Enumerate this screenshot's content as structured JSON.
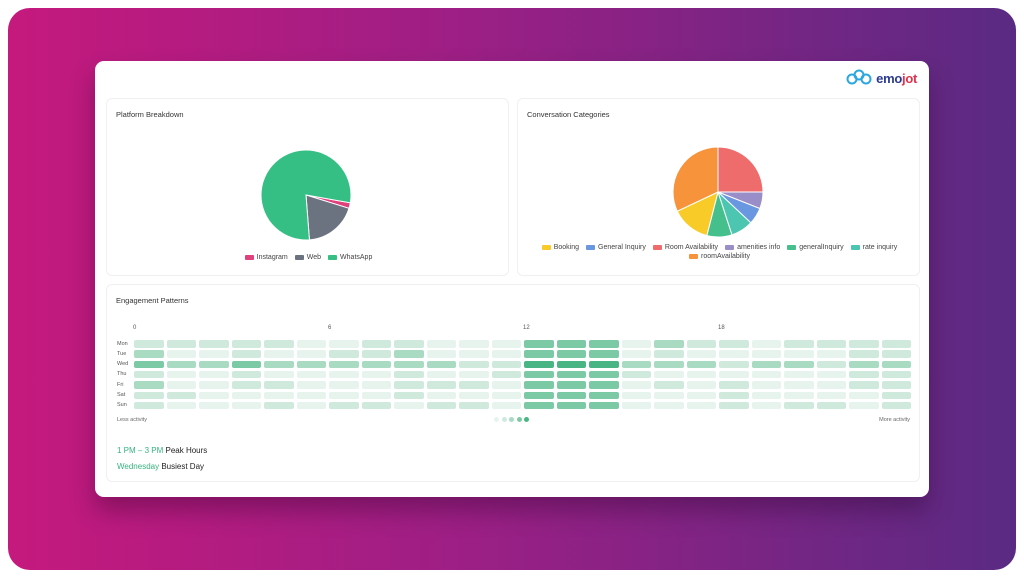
{
  "brand": {
    "logo_part1": "emo",
    "logo_part2": "jot"
  },
  "platform": {
    "title": "Platform Breakdown",
    "slices": [
      {
        "name": "Instagram",
        "value": 2,
        "color": "#e0407b"
      },
      {
        "name": "Web",
        "value": 19,
        "color": "#6b7280"
      },
      {
        "name": "WhatsApp",
        "value": 79,
        "color": "#36bf85"
      }
    ]
  },
  "categories": {
    "title": "Conversation Categories",
    "slices": [
      {
        "name": "Booking",
        "value": 14,
        "color": "#f9cb28"
      },
      {
        "name": "General Inquiry",
        "value": 6,
        "color": "#6a98e0"
      },
      {
        "name": "Room Availability",
        "value": 25,
        "color": "#ee6c6c"
      },
      {
        "name": "amenities info",
        "value": 6,
        "color": "#9a8ec9"
      },
      {
        "name": "generalInquiry",
        "value": 9,
        "color": "#45c08c"
      },
      {
        "name": "rate inquiry",
        "value": 8,
        "color": "#4cc6b1"
      },
      {
        "name": "roomAvailability",
        "value": 32,
        "color": "#f7933b"
      }
    ]
  },
  "engagement": {
    "title": "Engagement Patterns",
    "hour_labels": [
      "0",
      "6",
      "12",
      "18"
    ],
    "days": [
      "Mon",
      "Tue",
      "Wed",
      "Thu",
      "Fri",
      "Sat",
      "Sun"
    ],
    "less_label": "Less activity",
    "more_label": "More activity",
    "intensity_colors": [
      "#e7f4ee",
      "#cfeadd",
      "#a9dbc3",
      "#7ccaa5",
      "#49b584"
    ],
    "grid": [
      [
        1,
        1,
        1,
        1,
        1,
        0,
        0,
        1,
        1,
        0,
        0,
        0,
        3,
        3,
        3,
        0,
        2,
        1,
        1,
        0,
        1,
        1,
        1,
        1
      ],
      [
        2,
        0,
        0,
        1,
        0,
        0,
        1,
        1,
        2,
        0,
        0,
        0,
        3,
        3,
        3,
        0,
        1,
        0,
        0,
        0,
        0,
        0,
        1,
        1
      ],
      [
        3,
        2,
        2,
        3,
        2,
        2,
        2,
        2,
        2,
        2,
        1,
        1,
        4,
        4,
        4,
        2,
        2,
        2,
        1,
        2,
        2,
        1,
        2,
        2
      ],
      [
        1,
        0,
        0,
        1,
        0,
        0,
        0,
        0,
        1,
        0,
        0,
        1,
        3,
        3,
        3,
        1,
        0,
        0,
        0,
        0,
        0,
        0,
        1,
        1
      ],
      [
        2,
        0,
        0,
        1,
        1,
        0,
        0,
        0,
        1,
        1,
        1,
        0,
        3,
        3,
        3,
        0,
        1,
        0,
        1,
        0,
        0,
        0,
        1,
        1
      ],
      [
        1,
        1,
        0,
        0,
        0,
        0,
        0,
        0,
        1,
        0,
        0,
        0,
        3,
        3,
        3,
        0,
        0,
        0,
        1,
        0,
        0,
        0,
        0,
        1
      ],
      [
        1,
        0,
        0,
        0,
        1,
        0,
        1,
        1,
        0,
        1,
        1,
        0,
        3,
        3,
        3,
        0,
        0,
        0,
        1,
        0,
        1,
        1,
        0,
        1
      ]
    ],
    "peak_hours_value": "1 PM – 3 PM",
    "peak_hours_label": "Peak Hours",
    "busiest_day_value": "Wednesday",
    "busiest_day_label": "Busiest Day"
  }
}
